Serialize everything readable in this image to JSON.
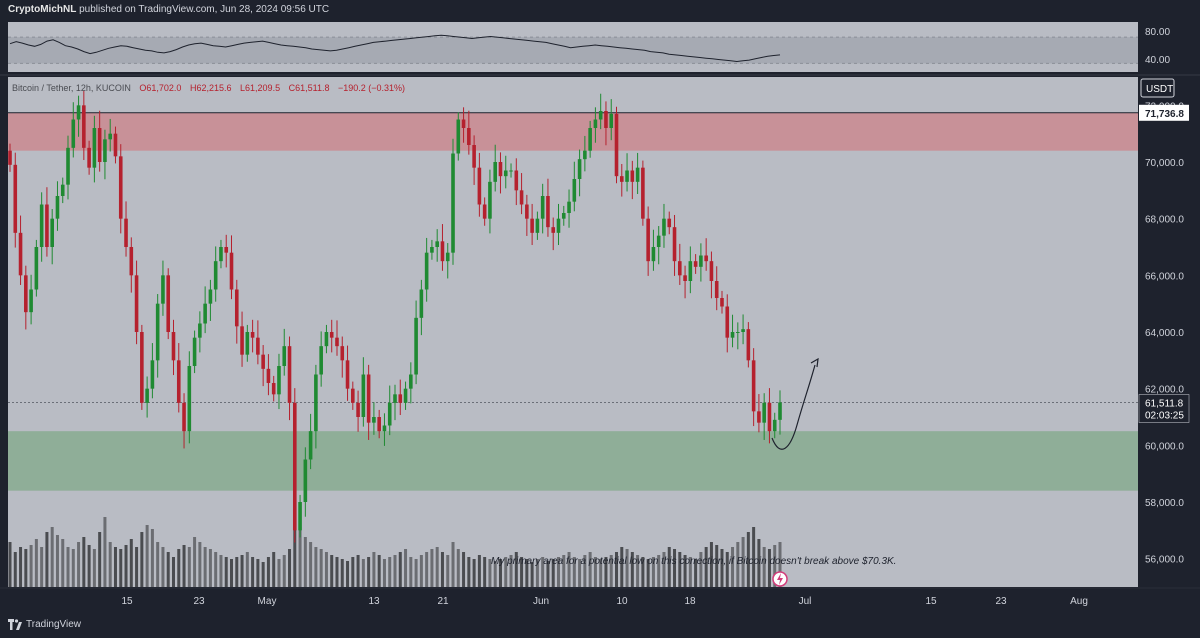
{
  "header": {
    "author": "CryptoMichNL",
    "published_text": "published on TradingView.com, Jun 28, 2024 09:56 UTC"
  },
  "footer": {
    "brand": "TradingView"
  },
  "colors": {
    "up": "#1f8a32",
    "down": "#b5212e",
    "resistance_zone": "#c89198",
    "support_zone": "#8fae98",
    "panel": "#b9bcc4",
    "background": "#1e222d",
    "volume_up": "#6b6d72",
    "volume_down": "#4a4c50"
  },
  "chart_data": [
    {
      "type": "line",
      "name": "rsi",
      "ylim": [
        20,
        90
      ],
      "y_ticks": [
        "80.00",
        "40.00"
      ],
      "band": [
        30,
        70
      ],
      "values": [
        60,
        63,
        61,
        58,
        56,
        59,
        64,
        66,
        62,
        57,
        55,
        52,
        48,
        45,
        47,
        50,
        53,
        55,
        57,
        56,
        54,
        52,
        50,
        49,
        47,
        46,
        48,
        51,
        55,
        58,
        60,
        61,
        59,
        57,
        56,
        55,
        57,
        59,
        61,
        62,
        63,
        64,
        62,
        60,
        58,
        57,
        56,
        55,
        54,
        52,
        51,
        50,
        49,
        50,
        52,
        54,
        56,
        58,
        60,
        62,
        63,
        64,
        65,
        66,
        67,
        68,
        69,
        70,
        71,
        72,
        73,
        72,
        71,
        70,
        69,
        68,
        69,
        70,
        71,
        70,
        69,
        68,
        67,
        66,
        65,
        64,
        63,
        62,
        60,
        58,
        56,
        54,
        55,
        56,
        57,
        58,
        57,
        56,
        55,
        54,
        53,
        52,
        51,
        50,
        48,
        47,
        46,
        44,
        43,
        42,
        41,
        40,
        39,
        38,
        37,
        36,
        35,
        34,
        33,
        34,
        35,
        37,
        39,
        41,
        42,
        43
      ]
    },
    {
      "type": "candlestick",
      "name": "price",
      "legend": {
        "symbol": "Bitcoin / Tether, 12h, KUCOIN",
        "open": "O61,702.0",
        "high": "H62,215.6",
        "low": "L61,209.5",
        "close": "C61,511.8",
        "change": "−190.2 (−0.31%)"
      },
      "currency_badge": "USDT",
      "ylim": [
        55000,
        73000
      ],
      "y_ticks": [
        "72,000.0",
        "70,000.0",
        "68,000.0",
        "66,000.0",
        "64,000.0",
        "62,000.0",
        "60,000.0",
        "58,000.0",
        "56,000.0"
      ],
      "x_tick_labels": [
        "15",
        "23",
        "May",
        "13",
        "21",
        "Jun",
        "10",
        "18",
        "Jul",
        "15",
        "23",
        "Aug"
      ],
      "resistance_zone": [
        70400,
        71736.8
      ],
      "support_zone": [
        58400,
        60500
      ],
      "price_labels": {
        "resistance": "71,736.8",
        "last_price": "61,511.8",
        "countdown": "02:03:25"
      },
      "last_price": 61511.8,
      "closes": [
        69900,
        67500,
        66000,
        64700,
        65500,
        67000,
        68500,
        67000,
        68000,
        68800,
        69200,
        70500,
        71500,
        72000,
        70500,
        69800,
        71200,
        70000,
        70800,
        71000,
        70200,
        68000,
        67000,
        66000,
        64000,
        61500,
        62000,
        63000,
        65000,
        66000,
        64000,
        63000,
        61500,
        60500,
        62800,
        63800,
        64300,
        65000,
        65500,
        66500,
        67000,
        66800,
        65500,
        64200,
        63200,
        64000,
        63800,
        63200,
        62700,
        62200,
        61800,
        62800,
        63500,
        61500,
        57000,
        58000,
        59500,
        60500,
        62500,
        63500,
        64000,
        63800,
        63500,
        63000,
        62000,
        61500,
        61000,
        62500,
        60800,
        61000,
        60500,
        60700,
        61500,
        61800,
        61500,
        62000,
        62500,
        64500,
        65500,
        66800,
        67000,
        67200,
        66500,
        66800,
        70300,
        71500,
        71200,
        70600,
        69800,
        68500,
        68000,
        69300,
        70000,
        69500,
        69700,
        69700,
        69000,
        68500,
        68000,
        67500,
        68000,
        68800,
        67700,
        67500,
        68000,
        68200,
        68600,
        69400,
        70100,
        70400,
        71200,
        71500,
        71800,
        71200,
        71700,
        69500,
        69300,
        69700,
        69300,
        69800,
        68000,
        66500,
        67000,
        67400,
        68000,
        67700,
        66500,
        66000,
        65800,
        66500,
        66300,
        66700,
        66500,
        65800,
        65200,
        64900,
        63800,
        64000,
        64000,
        64100,
        63000,
        61200,
        60800,
        61500,
        60500,
        60900,
        61511.8
      ],
      "volumes": [
        45,
        35,
        40,
        38,
        42,
        48,
        40,
        55,
        60,
        52,
        48,
        40,
        38,
        45,
        50,
        42,
        38,
        55,
        70,
        45,
        40,
        38,
        42,
        48,
        40,
        55,
        62,
        58,
        45,
        40,
        35,
        30,
        38,
        42,
        40,
        50,
        45,
        40,
        38,
        35,
        32,
        30,
        28,
        30,
        32,
        35,
        30,
        28,
        25,
        30,
        35,
        28,
        32,
        38,
        70,
        60,
        50,
        45,
        40,
        38,
        35,
        32,
        30,
        28,
        26,
        30,
        32,
        28,
        30,
        35,
        32,
        28,
        30,
        32,
        35,
        38,
        30,
        28,
        32,
        35,
        38,
        40,
        35,
        32,
        45,
        38,
        35,
        30,
        28,
        32,
        30,
        28,
        26,
        28,
        30,
        32,
        35,
        30,
        28,
        25,
        28,
        30,
        26,
        28,
        30,
        32,
        35,
        30,
        28,
        32,
        35,
        30,
        28,
        30,
        32,
        35,
        40,
        38,
        35,
        32,
        30,
        28,
        30,
        32,
        35,
        40,
        38,
        35,
        32,
        30,
        28,
        35,
        40,
        45,
        42,
        38,
        35,
        40,
        45,
        50,
        55,
        60,
        48,
        40,
        38,
        42,
        45
      ],
      "projection_label": "My primary area for a potential low on this correction, if Bitcoin doesn't break above $70.3K."
    }
  ]
}
